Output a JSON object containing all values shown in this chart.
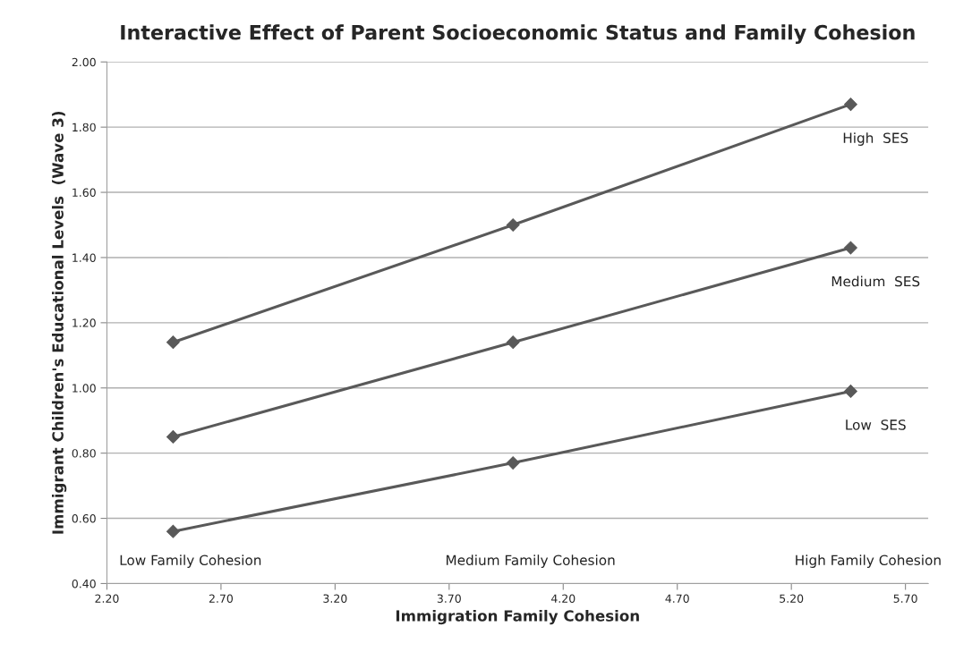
{
  "chart_data": {
    "type": "line",
    "title": "Interactive Effect of Parent Socioeconomic Status and Family Cohesion",
    "xlabel": "Immigration Family Cohesion",
    "ylabel": "Immigrant Children's Educational Levels  (Wave 3)",
    "x": [
      2.49,
      3.98,
      5.46
    ],
    "series": [
      {
        "name": "High  SES",
        "color": "#595959",
        "values": [
          1.14,
          1.5,
          1.87
        ]
      },
      {
        "name": "Medium  SES",
        "color": "#595959",
        "values": [
          0.85,
          1.14,
          1.43
        ]
      },
      {
        "name": "Low  SES",
        "color": "#595959",
        "values": [
          0.56,
          0.77,
          0.99
        ]
      }
    ],
    "annotations": [
      "Low Family Cohesion",
      "Medium Family Cohesion",
      "High Family Cohesion"
    ],
    "xlim": [
      2.2,
      5.8
    ],
    "xticks": [
      {
        "value": 2.2,
        "label": "2.20"
      },
      {
        "value": 2.7,
        "label": "2.70"
      },
      {
        "value": 3.2,
        "label": "3.20"
      },
      {
        "value": 3.7,
        "label": "3.70"
      },
      {
        "value": 4.2,
        "label": "4.20"
      },
      {
        "value": 4.7,
        "label": "4.70"
      },
      {
        "value": 5.2,
        "label": "5.20"
      },
      {
        "value": 5.7,
        "label": "5.70"
      }
    ],
    "ylim": [
      0.4,
      2.0
    ],
    "yticks": [
      {
        "value": 0.4,
        "label": "0.40"
      },
      {
        "value": 0.6,
        "label": "0.60"
      },
      {
        "value": 0.8,
        "label": "0.80"
      },
      {
        "value": 1.0,
        "label": "1.00"
      },
      {
        "value": 1.2,
        "label": "1.20"
      },
      {
        "value": 1.4,
        "label": "1.40"
      },
      {
        "value": 1.6,
        "label": "1.60"
      },
      {
        "value": 1.8,
        "label": "1.80"
      },
      {
        "value": 2.0,
        "label": "2.00"
      }
    ],
    "grid": "y",
    "legend": false,
    "marker": "diamond",
    "line_style": "solid"
  }
}
